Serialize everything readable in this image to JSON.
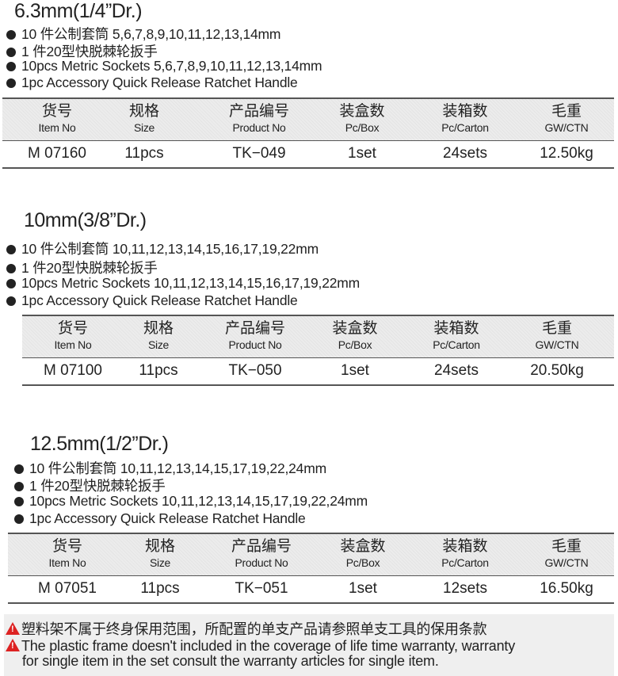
{
  "headers": [
    {
      "zh": "货号",
      "en": "Item No"
    },
    {
      "zh": "规格",
      "en": "Size"
    },
    {
      "zh": "产品编号",
      "en": "Product No"
    },
    {
      "zh": "装盒数",
      "en": "Pc/Box"
    },
    {
      "zh": "装箱数",
      "en": "Pc/Carton"
    },
    {
      "zh": "毛重",
      "en": "GW/CTN"
    }
  ],
  "sections": [
    {
      "title": "6.3mm(1/4”Dr.)",
      "bullets": [
        "10 件公制套筒 5,6,7,8,9,10,11,12,13,14mm",
        "1 件20型快脱棘轮扳手",
        "10pcs  Metric Sockets  5,6,7,8,9,10,11,12,13,14mm",
        "1pc Accessory Quick Release Ratchet Handle"
      ],
      "row": [
        "M 07160",
        "11pcs",
        "TK−049",
        "1set",
        "24sets",
        "12.50kg"
      ]
    },
    {
      "title": "10mm(3/8”Dr.)",
      "bullets": [
        "10 件公制套筒 10,11,12,13,14,15,16,17,19,22mm",
        "1 件20型快脱棘轮扳手",
        "10pcs  Metric Sockets  10,11,12,13,14,15,16,17,19,22mm",
        "1pc  Accessory    Quick Release Ratchet Handle"
      ],
      "row": [
        "M 07100",
        "11pcs",
        "TK−050",
        "1set",
        "24sets",
        "20.50kg"
      ]
    },
    {
      "title": "12.5mm(1/2”Dr.)",
      "bullets": [
        "10 件公制套筒 10,11,12,13,14,15,17,19,22,24mm",
        "1 件20型快脱棘轮扳手",
        "10pcs  Metric Sockets  10,11,12,13,14,15,17,19,22,24mm",
        "1pc  Accessory  Quick Release Ratchet Handle"
      ],
      "row": [
        "M 07051",
        "11pcs",
        "TK−051",
        "1set",
        "12sets",
        "16.50kg"
      ]
    }
  ],
  "footer": {
    "zh": "塑料架不属于终身保用范围，所配置的单支产品请参照单支工具的保用条款",
    "en1": "The plastic frame doesn't included in the coverage of life time warranty, warranty",
    "en2": "for single item in the set consult the warranty articles for single item.",
    "icon": "warning-triangle-icon",
    "icon_color": "#d22222"
  }
}
